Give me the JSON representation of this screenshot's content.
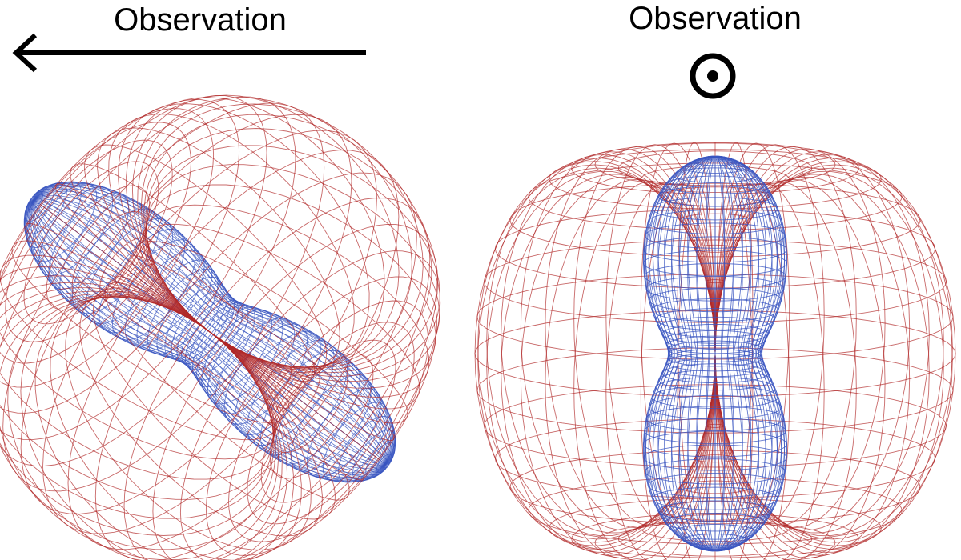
{
  "left_panel": {
    "label": "Observation"
  },
  "right_panel": {
    "label": "Observation"
  }
}
